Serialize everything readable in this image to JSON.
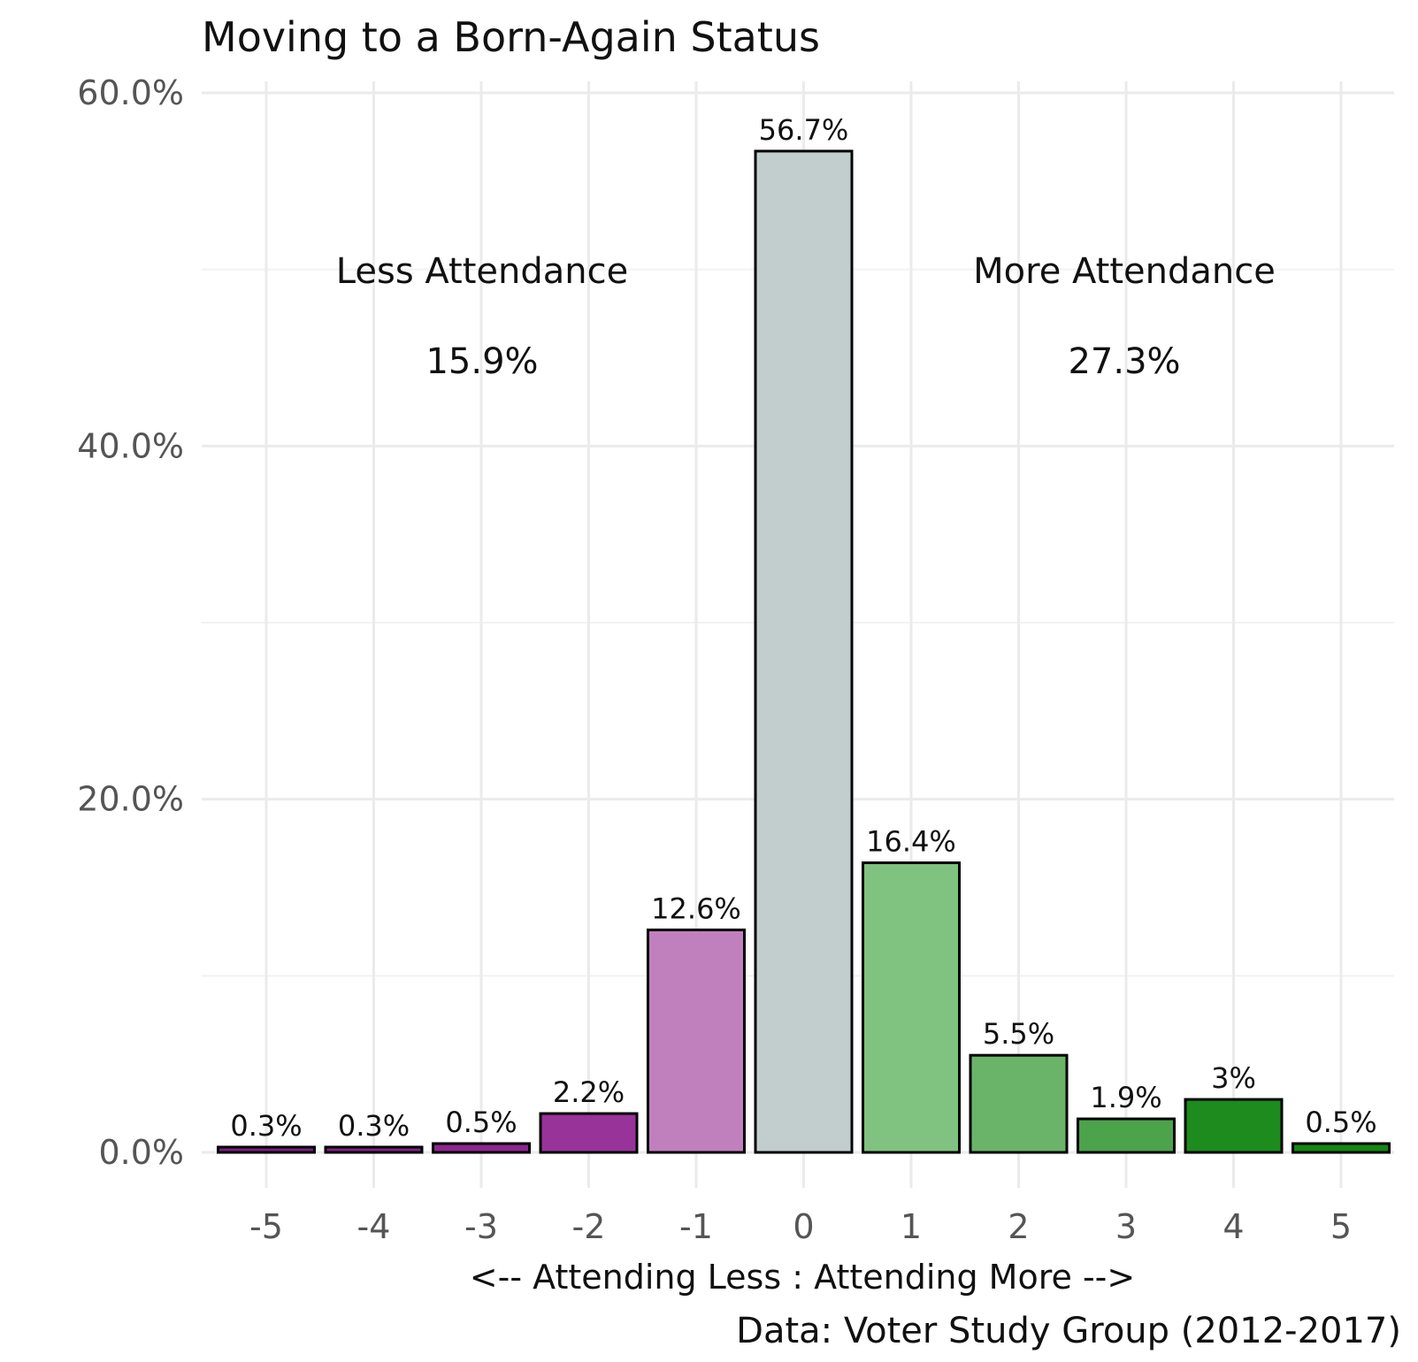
{
  "chart_data": {
    "type": "bar",
    "title": "Moving to a Born-Again Status",
    "xlabel": "<-- Attending Less : Attending More -->",
    "ylabel": "",
    "caption": "Data: Voter Study Group (2012-2017)",
    "categories": [
      "-5",
      "-4",
      "-3",
      "-2",
      "-1",
      "0",
      "1",
      "2",
      "3",
      "4",
      "5"
    ],
    "values": [
      0.3,
      0.3,
      0.5,
      2.2,
      12.6,
      56.7,
      16.4,
      5.5,
      1.9,
      3.0,
      0.5
    ],
    "value_labels": [
      "0.3%",
      "0.3%",
      "0.5%",
      "2.2%",
      "12.6%",
      "56.7%",
      "16.4%",
      "5.5%",
      "1.9%",
      "3%",
      "0.5%"
    ],
    "colors": [
      "#7B1F7F",
      "#832286",
      "#8E258E",
      "#98339A",
      "#C080BE",
      "#C2CECE",
      "#80C280",
      "#6AB46A",
      "#4CA34C",
      "#1D8B1D",
      "#128712"
    ],
    "bar_outline": "#000000",
    "ylim": [
      0,
      60
    ],
    "yticks": [
      0,
      20,
      40,
      60
    ],
    "ytick_labels": [
      "0.0%",
      "20.0%",
      "40.0%",
      "60.0%"
    ],
    "grid": true,
    "legend": "none",
    "annotations": [
      {
        "label": "Less Attendance",
        "value": "15.9%"
      },
      {
        "label": "More Attendance",
        "value": "27.3%"
      }
    ]
  }
}
